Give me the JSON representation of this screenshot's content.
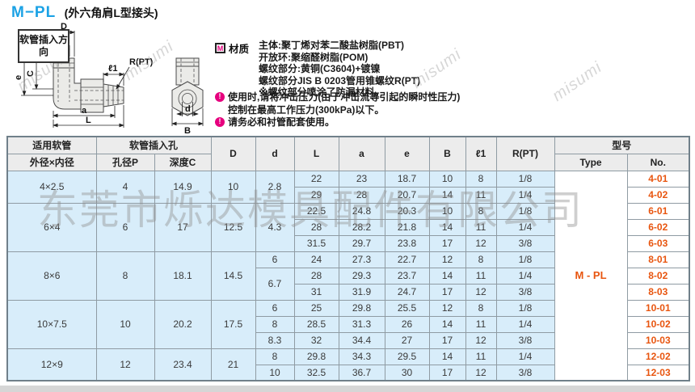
{
  "page": {
    "title": "M−PL",
    "subtitle": "(外六角肩L型接头)",
    "insertion_label": "软管插入方向"
  },
  "diagram": {
    "D": "D",
    "P": "P",
    "C": "C",
    "e": "e",
    "a": "a",
    "L": "L",
    "l1": "ℓ1",
    "rpt": "R(PT)",
    "d": "d",
    "B": "B"
  },
  "material": {
    "icon": "M",
    "label": "材质",
    "lines": [
      "主体:聚丁烯对苯二酸盐树脂(PBT)",
      "开放环:聚缩醛树脂(POM)",
      "螺纹部分:黄铜(C3604)+镀镍",
      "螺纹部分JIS B 0203管用锥螺纹R(PT)",
      "※螺纹部分喷涂了防漏材料。"
    ]
  },
  "notes": [
    {
      "lines": [
        "使用时,请将冲击压力(由于冲击流等引起的瞬时性压力)",
        "控制在最高工作压力(300kPa)以下。"
      ]
    },
    {
      "lines": [
        "请务必和衬管配套使用。"
      ]
    }
  ],
  "watermarks": {
    "company": "东莞市烁达模具配件有限公司",
    "brand": "misumi"
  },
  "table": {
    "headers": {
      "tube": "适用软管",
      "tube_sub": "外径×内径",
      "hole": "软管插入孔",
      "hole_p": "孔径P",
      "hole_c": "深度C",
      "D": "D",
      "d": "d",
      "L": "L",
      "a": "a",
      "e": "e",
      "B": "B",
      "l1": "ℓ1",
      "rpt": "R(PT)",
      "model": "型号",
      "type": "Type",
      "no": "No."
    },
    "type_label": "M - PL",
    "rows": [
      {
        "size": "4×2.5",
        "p": "4",
        "c": "14.9",
        "D": "10",
        "gspan": 2,
        "d": "2.8",
        "dspan": 2,
        "L": "22",
        "a": "23",
        "e": "18.7",
        "B": "10",
        "l1": "8",
        "r": "1/8",
        "no": "4-01"
      },
      {
        "L": "29",
        "a": "28",
        "e": "20.7",
        "B": "14",
        "l1": "11",
        "r": "1/4",
        "no": "4-02"
      },
      {
        "size": "6×4",
        "p": "6",
        "c": "17",
        "D": "12.5",
        "gspan": 3,
        "d": "4.3",
        "dspan": 3,
        "L": "22.5",
        "a": "24.8",
        "e": "20.3",
        "B": "10",
        "l1": "8",
        "r": "1/8",
        "no": "6-01"
      },
      {
        "L": "28",
        "a": "28.2",
        "e": "21.8",
        "B": "14",
        "l1": "11",
        "r": "1/4",
        "no": "6-02"
      },
      {
        "L": "31.5",
        "a": "29.7",
        "e": "23.8",
        "B": "17",
        "l1": "12",
        "r": "3/8",
        "no": "6-03"
      },
      {
        "size": "8×6",
        "p": "8",
        "c": "18.1",
        "D": "14.5",
        "gspan": 3,
        "d": "6",
        "dspan": 1,
        "L": "24",
        "a": "27.3",
        "e": "22.7",
        "B": "12",
        "l1": "8",
        "r": "1/8",
        "no": "8-01"
      },
      {
        "d": "6.7",
        "dspan": 2,
        "L": "28",
        "a": "29.3",
        "e": "23.7",
        "B": "14",
        "l1": "11",
        "r": "1/4",
        "no": "8-02"
      },
      {
        "L": "31",
        "a": "31.9",
        "e": "24.7",
        "B": "17",
        "l1": "12",
        "r": "3/8",
        "no": "8-03"
      },
      {
        "size": "10×7.5",
        "p": "10",
        "c": "20.2",
        "D": "17.5",
        "gspan": 3,
        "d": "6",
        "dspan": 1,
        "L": "25",
        "a": "29.8",
        "e": "25.5",
        "B": "12",
        "l1": "8",
        "r": "1/8",
        "no": "10-01"
      },
      {
        "d": "8",
        "dspan": 1,
        "L": "28.5",
        "a": "31.3",
        "e": "26",
        "B": "14",
        "l1": "11",
        "r": "1/4",
        "no": "10-02"
      },
      {
        "d": "8.3",
        "dspan": 1,
        "L": "32",
        "a": "34.4",
        "e": "27",
        "B": "17",
        "l1": "12",
        "r": "3/8",
        "no": "10-03"
      },
      {
        "size": "12×9",
        "p": "12",
        "c": "23.4",
        "D": "21",
        "gspan": 2,
        "d": "8",
        "dspan": 1,
        "L": "29.8",
        "a": "34.3",
        "e": "29.5",
        "B": "14",
        "l1": "11",
        "r": "1/4",
        "no": "12-02"
      },
      {
        "d": "10",
        "dspan": 1,
        "L": "32.5",
        "a": "36.7",
        "e": "30",
        "B": "17",
        "l1": "12",
        "r": "3/8",
        "no": "12-03"
      }
    ]
  },
  "colors": {
    "title_blue": "#1ba2e5",
    "accent_orange": "#e8550f",
    "note_magenta": "#e6007e",
    "cell_blue": "#d8edfa",
    "header_gray": "#ececec"
  }
}
